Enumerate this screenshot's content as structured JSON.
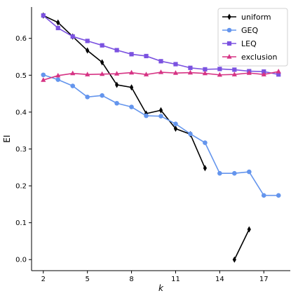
{
  "chart_data": {
    "type": "line",
    "title": "",
    "xlabel": "k",
    "ylabel": "EI",
    "xlim": [
      1.2,
      18.8
    ],
    "ylim": [
      -0.03,
      0.685
    ],
    "xticks": [
      2,
      5,
      8,
      11,
      14,
      17
    ],
    "yticks": [
      0.0,
      0.1,
      0.2,
      0.3,
      0.4,
      0.5,
      0.6
    ],
    "ytick_labels": [
      "0.0",
      "0.1",
      "0.2",
      "0.3",
      "0.4",
      "0.5",
      "0.6"
    ],
    "legend_position": "top-right",
    "grid": false,
    "series": [
      {
        "name": "uniform",
        "color": "#000000",
        "marker": "diamond",
        "segments": [
          [
            [
              2,
              0.662
            ],
            [
              3,
              0.643
            ],
            [
              4,
              0.605
            ],
            [
              5,
              0.567
            ],
            [
              6,
              0.535
            ],
            [
              7,
              0.474
            ],
            [
              8,
              0.467
            ],
            [
              9,
              0.396
            ],
            [
              10,
              0.405
            ],
            [
              11,
              0.355
            ],
            [
              12,
              0.34
            ],
            [
              13,
              0.248
            ]
          ],
          [
            [
              15,
              0.0
            ],
            [
              16,
              0.082
            ]
          ]
        ]
      },
      {
        "name": "GEQ",
        "color": "#6495ed",
        "marker": "circle",
        "segments": [
          [
            [
              2,
              0.501
            ],
            [
              3,
              0.488
            ],
            [
              4,
              0.471
            ],
            [
              5,
              0.441
            ],
            [
              6,
              0.445
            ],
            [
              7,
              0.424
            ],
            [
              8,
              0.414
            ],
            [
              9,
              0.39
            ],
            [
              10,
              0.389
            ],
            [
              11,
              0.368
            ],
            [
              12,
              0.341
            ],
            [
              13,
              0.317
            ],
            [
              14,
              0.234
            ],
            [
              15,
              0.234
            ],
            [
              16,
              0.238
            ],
            [
              17,
              0.174
            ],
            [
              18,
              0.174
            ]
          ]
        ]
      },
      {
        "name": "LEQ",
        "color": "#7b52e0",
        "marker": "square",
        "segments": [
          [
            [
              2,
              0.662
            ],
            [
              3,
              0.628
            ],
            [
              4,
              0.605
            ],
            [
              5,
              0.593
            ],
            [
              6,
              0.581
            ],
            [
              7,
              0.568
            ],
            [
              8,
              0.557
            ],
            [
              9,
              0.552
            ],
            [
              10,
              0.538
            ],
            [
              11,
              0.53
            ],
            [
              12,
              0.52
            ],
            [
              13,
              0.516
            ],
            [
              14,
              0.517
            ],
            [
              15,
              0.515
            ],
            [
              16,
              0.511
            ],
            [
              17,
              0.51
            ],
            [
              18,
              0.502
            ]
          ]
        ]
      },
      {
        "name": "exclusion",
        "color": "#d63384",
        "marker": "triangle",
        "segments": [
          [
            [
              2,
              0.487
            ],
            [
              3,
              0.499
            ],
            [
              4,
              0.505
            ],
            [
              5,
              0.502
            ],
            [
              6,
              0.503
            ],
            [
              7,
              0.504
            ],
            [
              8,
              0.507
            ],
            [
              9,
              0.502
            ],
            [
              10,
              0.508
            ],
            [
              11,
              0.506
            ],
            [
              12,
              0.507
            ],
            [
              13,
              0.505
            ],
            [
              14,
              0.501
            ],
            [
              15,
              0.502
            ],
            [
              16,
              0.506
            ],
            [
              17,
              0.502
            ],
            [
              18,
              0.51
            ]
          ]
        ]
      }
    ]
  }
}
